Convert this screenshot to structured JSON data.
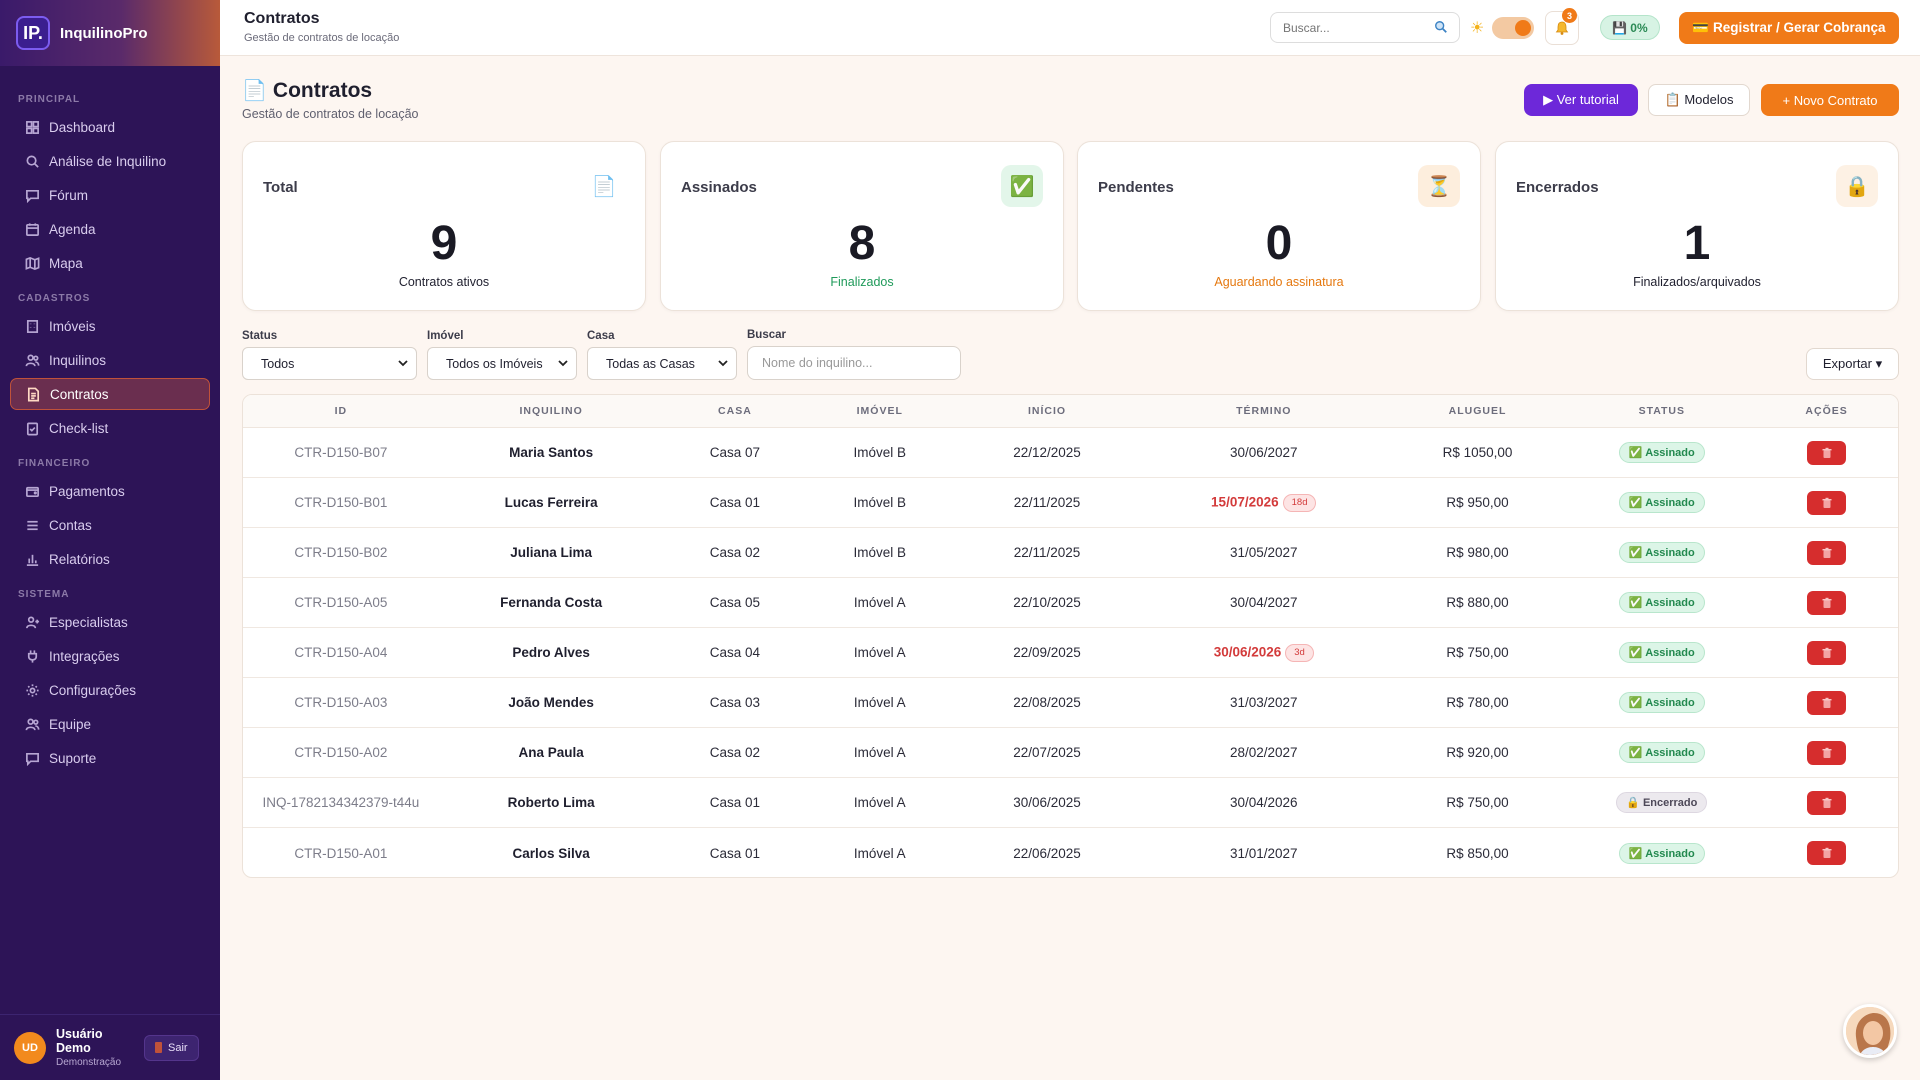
{
  "app": {
    "logo": "IP.",
    "name": "InquilinoPro"
  },
  "sidebar": {
    "sections": [
      {
        "title": "PRINCIPAL",
        "items": [
          {
            "label": "Dashboard",
            "icon": "dashboard-icon"
          },
          {
            "label": "Análise de Inquilino",
            "icon": "search-icon"
          },
          {
            "label": "Fórum",
            "icon": "chat-icon"
          },
          {
            "label": "Agenda",
            "icon": "calendar-icon"
          },
          {
            "label": "Mapa",
            "icon": "map-icon"
          }
        ]
      },
      {
        "title": "CADASTROS",
        "items": [
          {
            "label": "Imóveis",
            "icon": "building-icon"
          },
          {
            "label": "Inquilinos",
            "icon": "users-icon"
          },
          {
            "label": "Contratos",
            "icon": "document-icon",
            "active": true
          },
          {
            "label": "Check-list",
            "icon": "checklist-icon"
          }
        ]
      },
      {
        "title": "FINANCEIRO",
        "items": [
          {
            "label": "Pagamentos",
            "icon": "wallet-icon"
          },
          {
            "label": "Contas",
            "icon": "list-icon"
          },
          {
            "label": "Relatórios",
            "icon": "bar-chart-icon"
          }
        ]
      },
      {
        "title": "SISTEMA",
        "items": [
          {
            "label": "Especialistas",
            "icon": "user-plus-icon"
          },
          {
            "label": "Integrações",
            "icon": "plug-icon"
          },
          {
            "label": "Configurações",
            "icon": "gear-icon"
          },
          {
            "label": "Equipe",
            "icon": "users-icon"
          },
          {
            "label": "Suporte",
            "icon": "chat-icon"
          }
        ]
      }
    ],
    "user": {
      "initials": "UD",
      "name": "Usuário Demo",
      "role": "Demonstração",
      "logout": "Sair"
    }
  },
  "topbar": {
    "title": "Contratos",
    "subtitle": "Gestão de contratos de locação",
    "search_placeholder": "Buscar...",
    "notifications": "3",
    "save_status": "💾 0%",
    "cta": "💳 Registrar / Gerar Cobrança"
  },
  "page": {
    "icon": "📄",
    "title": "Contratos",
    "subtitle": "Gestão de contratos de locação",
    "btn_tutorial": "▶ Ver tutorial",
    "btn_modelos": "📋 Modelos",
    "btn_novo": "+ Novo Contrato"
  },
  "stats": [
    {
      "label": "Total",
      "icon": "📄",
      "value": "9",
      "note": "Contratos ativos",
      "note_color": "#1f1f2e",
      "icon_bg": "#ffffff"
    },
    {
      "label": "Assinados",
      "icon": "✅",
      "value": "8",
      "note": "Finalizados",
      "note_color": "#1f9a5a",
      "icon_bg": "#e3f6ea"
    },
    {
      "label": "Pendentes",
      "icon": "⏳",
      "value": "0",
      "note": "Aguardando assinatura",
      "note_color": "#e5780f",
      "icon_bg": "#fdeedd"
    },
    {
      "label": "Encerrados",
      "icon": "🔒",
      "value": "1",
      "note": "Finalizados/arquivados",
      "note_color": "#1f1f2e",
      "icon_bg": "#fdf1e4"
    }
  ],
  "filters": {
    "status": {
      "label": "Status",
      "value": "Todos"
    },
    "imovel": {
      "label": "Imóvel",
      "value": "Todos os Imóveis"
    },
    "casa": {
      "label": "Casa",
      "value": "Todas as Casas"
    },
    "buscar": {
      "label": "Buscar",
      "placeholder": "Nome do inquilino..."
    },
    "export": "Exportar ▾"
  },
  "table": {
    "headers": [
      "ID",
      "INQUILINO",
      "CASA",
      "IMÓVEL",
      "INÍCIO",
      "TÉRMINO",
      "ALUGUEL",
      "STATUS",
      "AÇÕES"
    ],
    "rows": [
      {
        "id": "CTR-D150-B07",
        "tenant": "Maria Santos",
        "house": "Casa 07",
        "property": "Imóvel B",
        "start": "22/12/2025",
        "end": "30/06/2027",
        "rent": "R$ 1050,00",
        "status": "✅ Assinado",
        "state": "ok"
      },
      {
        "id": "CTR-D150-B01",
        "tenant": "Lucas Ferreira",
        "house": "Casa 01",
        "property": "Imóvel B",
        "start": "22/11/2025",
        "end": "15/07/2026",
        "end_pill": "18d",
        "rent": "R$ 950,00",
        "status": "✅ Assinado",
        "state": "ok"
      },
      {
        "id": "CTR-D150-B02",
        "tenant": "Juliana Lima",
        "house": "Casa 02",
        "property": "Imóvel B",
        "start": "22/11/2025",
        "end": "31/05/2027",
        "rent": "R$ 980,00",
        "status": "✅ Assinado",
        "state": "ok"
      },
      {
        "id": "CTR-D150-A05",
        "tenant": "Fernanda Costa",
        "house": "Casa 05",
        "property": "Imóvel A",
        "start": "22/10/2025",
        "end": "30/04/2027",
        "rent": "R$ 880,00",
        "status": "✅ Assinado",
        "state": "ok"
      },
      {
        "id": "CTR-D150-A04",
        "tenant": "Pedro Alves",
        "house": "Casa 04",
        "property": "Imóvel A",
        "start": "22/09/2025",
        "end": "30/06/2026",
        "end_pill": "3d",
        "rent": "R$ 750,00",
        "status": "✅ Assinado",
        "state": "ok"
      },
      {
        "id": "CTR-D150-A03",
        "tenant": "João Mendes",
        "house": "Casa 03",
        "property": "Imóvel A",
        "start": "22/08/2025",
        "end": "31/03/2027",
        "rent": "R$ 780,00",
        "status": "✅ Assinado",
        "state": "ok"
      },
      {
        "id": "CTR-D150-A02",
        "tenant": "Ana Paula",
        "house": "Casa 02",
        "property": "Imóvel A",
        "start": "22/07/2025",
        "end": "28/02/2027",
        "rent": "R$ 920,00",
        "status": "✅ Assinado",
        "state": "ok"
      },
      {
        "id": "INQ-1782134342379-t44u",
        "tenant": "Roberto Lima",
        "house": "Casa 01",
        "property": "Imóvel A",
        "start": "30/06/2025",
        "end": "30/04/2026",
        "rent": "R$ 750,00",
        "status": "🔒 Encerrado",
        "state": "end"
      },
      {
        "id": "CTR-D150-A01",
        "tenant": "Carlos Silva",
        "house": "Casa 01",
        "property": "Imóvel A",
        "start": "22/06/2025",
        "end": "31/01/2027",
        "rent": "R$ 850,00",
        "status": "✅ Assinado",
        "state": "ok"
      }
    ],
    "delete_icon": "trash-icon"
  },
  "colors": {
    "accent": "#f07a18",
    "sidebar": "#2d1457",
    "purple_button": "#6d28d9",
    "danger": "#d62d2d"
  }
}
